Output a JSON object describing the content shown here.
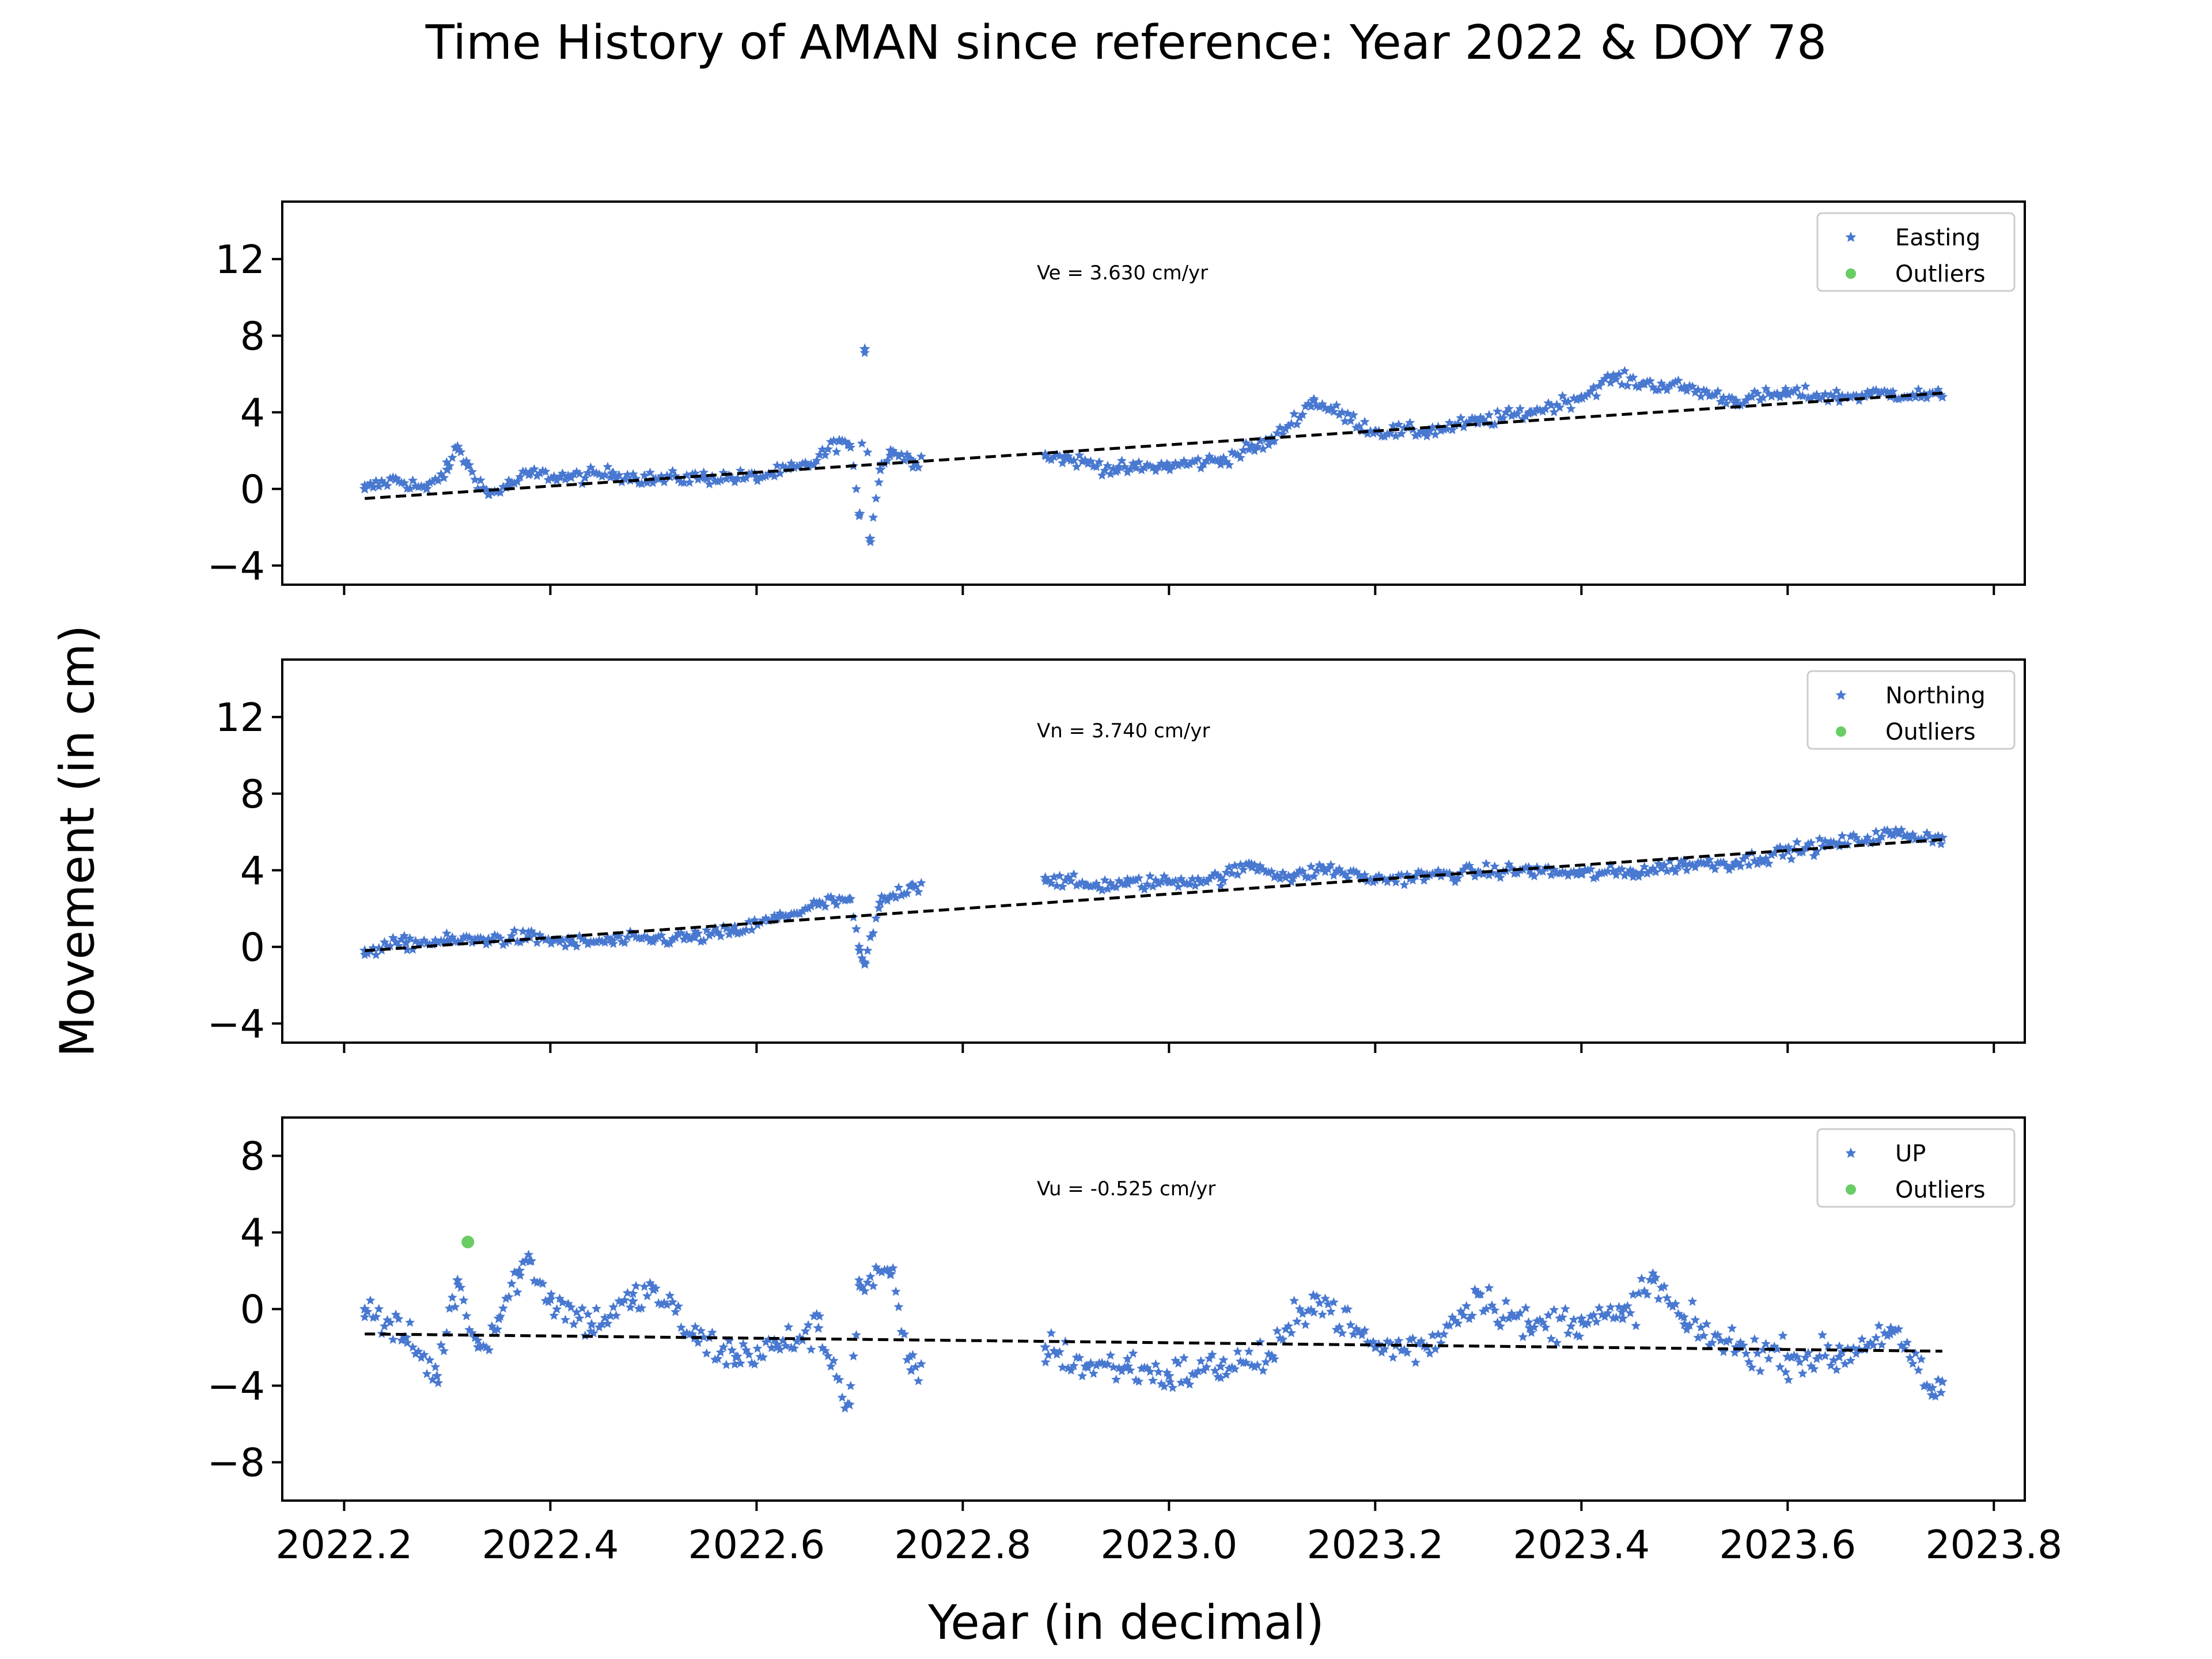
{
  "figure": {
    "title": "Time History of AMAN since reference: Year 2022 & DOY 78",
    "ylabel": "Movement (in cm)",
    "xlabel": "Year (in decimal)",
    "colors": {
      "data": "#4878d0",
      "outliers": "#6acc64",
      "trend": "#000000"
    }
  },
  "chart_data": [
    {
      "type": "scatter",
      "component": "Easting",
      "velocity_label": "Ve =  3.630 cm/yr",
      "legend": [
        "Easting",
        "Outliers"
      ],
      "legend_position": "top-right",
      "xlim": [
        2022.14,
        2023.83
      ],
      "ylim": [
        -5,
        15
      ],
      "yticks": [
        -4,
        0,
        4,
        8,
        12
      ],
      "trend": {
        "x": [
          2022.22,
          2023.75
        ],
        "y": [
          -0.5,
          5.0
        ]
      },
      "data_gap": [
        2022.76,
        2022.88
      ],
      "series": [
        {
          "name": "Easting",
          "x": [
            2022.22,
            2022.25,
            2022.28,
            2022.3,
            2022.31,
            2022.32,
            2022.34,
            2022.36,
            2022.38,
            2022.42,
            2022.46,
            2022.5,
            2022.55,
            2022.6,
            2022.65,
            2022.68,
            2022.69,
            2022.7,
            2022.705,
            2022.71,
            2022.72,
            2022.73,
            2022.75,
            2022.88,
            2022.9,
            2022.95,
            2023.0,
            2023.05,
            2023.1,
            2023.14,
            2023.2,
            2023.25,
            2023.3,
            2023.35,
            2023.4,
            2023.43,
            2023.46,
            2023.5,
            2023.55,
            2023.6,
            2023.65,
            2023.7,
            2023.75
          ],
          "y": [
            0.0,
            0.5,
            0.0,
            1.0,
            2.2,
            1.2,
            -0.3,
            0.2,
            0.8,
            0.6,
            0.8,
            0.5,
            0.6,
            0.6,
            1.2,
            2.5,
            2.3,
            -1.3,
            7.3,
            -2.6,
            1.0,
            2.0,
            1.5,
            1.8,
            1.6,
            1.0,
            1.2,
            1.5,
            2.5,
            4.6,
            3.0,
            3.0,
            3.5,
            4.0,
            4.8,
            5.8,
            5.5,
            5.3,
            4.6,
            5.0,
            4.8,
            5.0,
            4.8
          ]
        }
      ],
      "outliers": []
    },
    {
      "type": "scatter",
      "component": "Northing",
      "velocity_label": "Vn =  3.740 cm/yr",
      "legend": [
        "Northing",
        "Outliers"
      ],
      "legend_position": "top-right",
      "xlim": [
        2022.14,
        2023.83
      ],
      "ylim": [
        -5,
        15
      ],
      "yticks": [
        -4,
        0,
        4,
        8,
        12
      ],
      "trend": {
        "x": [
          2022.22,
          2023.75
        ],
        "y": [
          -0.2,
          5.6
        ]
      },
      "data_gap": [
        2022.76,
        2022.88
      ],
      "series": [
        {
          "name": "Northing",
          "x": [
            2022.22,
            2022.26,
            2022.3,
            2022.34,
            2022.38,
            2022.42,
            2022.46,
            2022.5,
            2022.54,
            2022.58,
            2022.62,
            2022.66,
            2022.69,
            2022.7,
            2022.705,
            2022.72,
            2022.75,
            2022.88,
            2022.92,
            2022.96,
            2023.0,
            2023.05,
            2023.08,
            2023.12,
            2023.15,
            2023.2,
            2023.25,
            2023.3,
            2023.35,
            2023.4,
            2023.45,
            2023.5,
            2023.55,
            2023.6,
            2023.65,
            2023.7,
            2023.75
          ],
          "y": [
            -0.2,
            0.2,
            0.3,
            0.4,
            0.5,
            0.2,
            0.3,
            0.4,
            0.5,
            0.8,
            1.5,
            2.2,
            2.5,
            -0.2,
            -0.9,
            2.3,
            3.2,
            3.6,
            3.2,
            3.3,
            3.4,
            3.6,
            4.3,
            3.6,
            4.1,
            3.5,
            3.7,
            3.9,
            4.0,
            3.8,
            3.9,
            4.3,
            4.4,
            5.0,
            5.4,
            5.9,
            5.7
          ]
        }
      ],
      "outliers": []
    },
    {
      "type": "scatter",
      "component": "UP",
      "velocity_label": "Vu = -0.525 cm/yr",
      "legend": [
        "UP",
        "Outliers"
      ],
      "legend_position": "top-right",
      "xlim": [
        2022.14,
        2023.83
      ],
      "ylim": [
        -10,
        10
      ],
      "yticks": [
        -8,
        -4,
        0,
        4,
        8
      ],
      "trend": {
        "x": [
          2022.22,
          2023.75
        ],
        "y": [
          -1.3,
          -2.2
        ]
      },
      "data_gap": [
        2022.76,
        2022.88
      ],
      "series": [
        {
          "name": "UP",
          "x": [
            2022.22,
            2022.26,
            2022.29,
            2022.31,
            2022.33,
            2022.35,
            2022.37,
            2022.38,
            2022.4,
            2022.44,
            2022.48,
            2022.5,
            2022.54,
            2022.58,
            2022.62,
            2022.66,
            2022.69,
            2022.7,
            2022.73,
            2022.75,
            2022.88,
            2022.92,
            2022.96,
            2023.0,
            2023.05,
            2023.1,
            2023.14,
            2023.2,
            2023.25,
            2023.3,
            2023.35,
            2023.4,
            2023.44,
            2023.47,
            2023.5,
            2023.55,
            2023.6,
            2023.65,
            2023.7,
            2023.74,
            2023.75
          ],
          "y": [
            0.0,
            -1.5,
            -3.5,
            1.5,
            -2.0,
            -0.5,
            2.0,
            2.5,
            0.5,
            -0.8,
            0.4,
            1.0,
            -1.5,
            -2.5,
            -2.0,
            -1.0,
            -5.0,
            1.2,
            1.8,
            -3.2,
            -2.0,
            -3.0,
            -3.0,
            -3.5,
            -3.0,
            -2.5,
            0.7,
            -2.0,
            -2.0,
            0.8,
            -1.0,
            -0.5,
            -0.5,
            1.5,
            -0.8,
            -2.0,
            -2.5,
            -2.5,
            -1.0,
            -4.5,
            -3.8
          ]
        }
      ],
      "outliers": [
        {
          "x": 2022.32,
          "y": 3.5
        }
      ]
    }
  ]
}
